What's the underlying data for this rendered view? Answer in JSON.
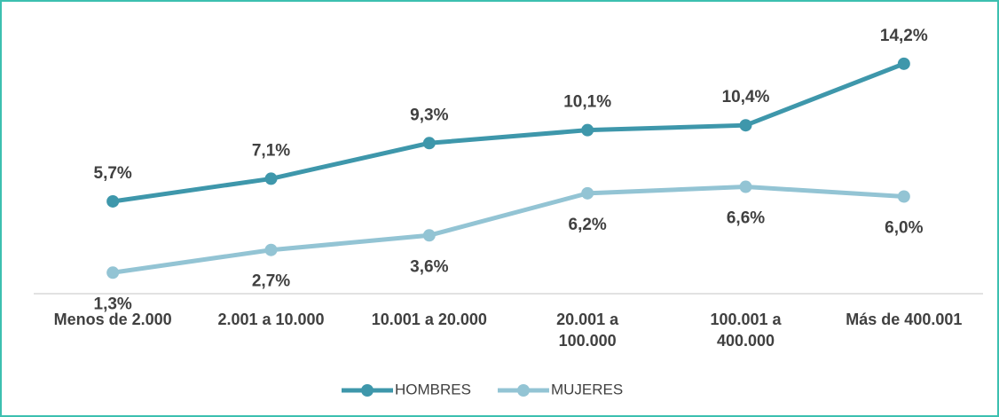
{
  "chart_data": {
    "type": "line",
    "categories": [
      [
        "Menos de 2.000"
      ],
      [
        "2.001 a 10.000"
      ],
      [
        "10.001 a 20.000"
      ],
      [
        "20.001 a",
        "100.000"
      ],
      [
        "100.001 a",
        "400.000"
      ],
      [
        "Más de 400.001"
      ]
    ],
    "series": [
      {
        "name": "HOMBRES",
        "color": "#3e97ab",
        "values": [
          5.7,
          7.1,
          9.3,
          10.1,
          10.4,
          14.2
        ],
        "value_labels": [
          "5,7%",
          "7,1%",
          "9,3%",
          "10,1%",
          "10,4%",
          "14,2%"
        ]
      },
      {
        "name": "MUJERES",
        "color": "#93c4d4",
        "values": [
          1.3,
          2.7,
          3.6,
          6.2,
          6.6,
          6.0
        ],
        "value_labels": [
          "1,3%",
          "2,7%",
          "3,6%",
          "6,2%",
          "6,6%",
          "6,0%"
        ]
      }
    ],
    "ylim": [
      0,
      16
    ],
    "legend": "bottom"
  }
}
